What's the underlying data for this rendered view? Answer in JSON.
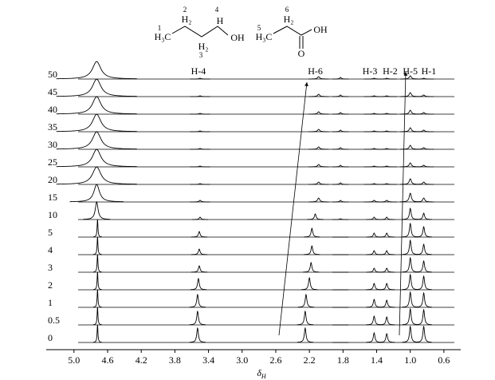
{
  "chart_data": {
    "type": "stacked-spectra",
    "x_label": "δ",
    "x_label_sub": "H",
    "xlim": [
      5.33,
      0.4
    ],
    "xticks": [
      {
        "value": 5.0,
        "label": "5.0"
      },
      4.6,
      4.2,
      3.8,
      3.4,
      {
        "value": 3.0,
        "label": "3.0"
      },
      2.6,
      2.2,
      1.8,
      1.4,
      {
        "value": 1.0,
        "label": "1.0"
      },
      0.6
    ],
    "peak_labels": [
      {
        "label": "H-4",
        "x": 3.52
      },
      {
        "label": "H-6",
        "x": 2.13
      },
      {
        "label": "H-3",
        "x": 1.48
      },
      {
        "label": "H-2",
        "x": 1.24
      },
      {
        "label": "H-5",
        "x": 1.0
      },
      {
        "label": "H-1",
        "x": 0.78
      }
    ],
    "series": [
      {
        "name": "0",
        "color": "#000000",
        "x": [
          4.72,
          3.53,
          2.25,
          1.83,
          1.43,
          1.28,
          1.0,
          0.84
        ],
        "values": [
          22,
          18,
          18,
          0,
          12,
          11,
          20,
          20
        ],
        "widths": [
          0.006,
          0.012,
          0.012,
          0.012,
          0.012,
          0.012,
          0.012,
          0.012
        ]
      },
      {
        "name": "0.5",
        "color": "#000000",
        "x": [
          4.72,
          3.53,
          2.25,
          1.83,
          1.43,
          1.28,
          1.0,
          0.84
        ],
        "values": [
          22,
          17,
          17,
          0,
          11,
          10,
          20,
          19
        ],
        "widths": [
          0.006,
          0.012,
          0.012,
          0.012,
          0.012,
          0.012,
          0.012,
          0.012
        ]
      },
      {
        "name": "1",
        "color": "#000000",
        "x": [
          4.72,
          3.53,
          2.24,
          1.83,
          1.43,
          1.28,
          1.0,
          0.84
        ],
        "values": [
          22,
          16,
          16,
          0,
          10,
          9,
          19,
          18
        ],
        "widths": [
          0.006,
          0.012,
          0.012,
          0.012,
          0.012,
          0.012,
          0.012,
          0.012
        ]
      },
      {
        "name": "2",
        "color": "#000000",
        "x": [
          4.72,
          3.52,
          2.2,
          1.83,
          1.43,
          1.28,
          1.0,
          0.84
        ],
        "values": [
          22,
          14,
          15,
          0,
          8,
          8,
          19,
          17
        ],
        "widths": [
          0.006,
          0.012,
          0.012,
          0.012,
          0.012,
          0.012,
          0.012,
          0.012
        ]
      },
      {
        "name": "3",
        "color": "#000000",
        "x": [
          4.72,
          3.51,
          2.18,
          1.83,
          1.43,
          1.28,
          1.0,
          0.84
        ],
        "values": [
          22,
          8,
          12,
          0,
          5,
          5,
          18,
          14
        ],
        "widths": [
          0.006,
          0.012,
          0.012,
          0.012,
          0.012,
          0.012,
          0.012,
          0.012
        ]
      },
      {
        "name": "4",
        "color": "#000000",
        "x": [
          4.72,
          3.51,
          2.17,
          1.83,
          1.43,
          1.28,
          1.0,
          0.84
        ],
        "values": [
          22,
          7,
          11,
          0,
          5,
          5,
          18,
          13
        ],
        "widths": [
          0.006,
          0.012,
          0.012,
          0.012,
          0.012,
          0.012,
          0.012,
          0.012
        ]
      },
      {
        "name": "5",
        "color": "#000000",
        "x": [
          4.72,
          3.51,
          2.17,
          1.83,
          1.43,
          1.28,
          1.0,
          0.84
        ],
        "values": [
          22,
          7,
          11,
          0,
          5,
          5,
          17,
          13
        ],
        "widths": [
          0.006,
          0.012,
          0.012,
          0.012,
          0.012,
          0.012,
          0.012,
          0.012
        ]
      },
      {
        "name": "10",
        "color": "#000000",
        "x": [
          4.73,
          3.5,
          2.13,
          1.83,
          1.43,
          1.28,
          1.0,
          0.84
        ],
        "values": [
          22,
          3,
          7,
          1,
          3,
          3,
          14,
          8
        ],
        "widths": [
          0.02,
          0.012,
          0.012,
          0.012,
          0.012,
          0.012,
          0.012,
          0.012
        ]
      },
      {
        "name": "15",
        "color": "#000000",
        "x": [
          4.73,
          3.5,
          2.09,
          1.83,
          1.43,
          1.28,
          1.0,
          0.84
        ],
        "values": [
          22,
          2,
          5,
          2,
          2,
          2,
          11,
          5
        ],
        "widths": [
          0.04,
          0.015,
          0.015,
          0.012,
          0.015,
          0.015,
          0.015,
          0.015
        ]
      },
      {
        "name": "20",
        "color": "#000000",
        "x": [
          4.73,
          3.5,
          2.09,
          1.83,
          1.43,
          1.28,
          1.0,
          0.84
        ],
        "values": [
          22,
          1,
          3,
          2,
          1,
          1,
          7,
          3
        ],
        "widths": [
          0.06,
          0.015,
          0.015,
          0.012,
          0.015,
          0.015,
          0.015,
          0.015
        ]
      },
      {
        "name": "25",
        "color": "#000000",
        "x": [
          4.73,
          3.5,
          2.09,
          1.83,
          1.43,
          1.28,
          1.0,
          0.84
        ],
        "values": [
          22,
          1,
          3,
          2,
          1,
          1,
          5,
          2
        ],
        "widths": [
          0.06,
          0.015,
          0.015,
          0.012,
          0.015,
          0.015,
          0.015,
          0.015
        ]
      },
      {
        "name": "30",
        "color": "#000000",
        "x": [
          4.73,
          3.5,
          2.09,
          1.83,
          1.43,
          1.28,
          1.0,
          0.84
        ],
        "values": [
          22,
          1,
          3,
          2,
          1,
          1,
          5,
          2
        ],
        "widths": [
          0.06,
          0.015,
          0.015,
          0.012,
          0.015,
          0.015,
          0.015,
          0.015
        ]
      },
      {
        "name": "35",
        "color": "#000000",
        "x": [
          4.73,
          3.5,
          2.09,
          1.83,
          1.43,
          1.28,
          1.0,
          0.84
        ],
        "values": [
          22,
          1,
          3,
          2,
          1,
          1,
          5,
          2
        ],
        "widths": [
          0.06,
          0.015,
          0.015,
          0.012,
          0.015,
          0.015,
          0.015,
          0.015
        ]
      },
      {
        "name": "40",
        "color": "#000000",
        "x": [
          4.73,
          3.5,
          2.09,
          1.83,
          1.43,
          1.28,
          1.0,
          0.84
        ],
        "values": [
          22,
          1,
          3,
          2,
          1,
          1,
          5,
          2
        ],
        "widths": [
          0.06,
          0.015,
          0.015,
          0.012,
          0.015,
          0.015,
          0.015,
          0.015
        ]
      },
      {
        "name": "45",
        "color": "#000000",
        "x": [
          4.73,
          3.5,
          2.09,
          1.83,
          1.43,
          1.28,
          1.0,
          0.84
        ],
        "values": [
          22,
          1,
          3,
          2,
          1,
          1,
          5,
          2
        ],
        "widths": [
          0.06,
          0.015,
          0.015,
          0.012,
          0.015,
          0.015,
          0.015,
          0.015
        ]
      },
      {
        "name": "50",
        "color": "#000000",
        "x": [
          4.73,
          3.5,
          2.09,
          1.83,
          1.43,
          1.28,
          1.0,
          0.84
        ],
        "values": [
          22,
          1,
          3,
          2,
          1,
          1,
          4,
          1
        ],
        "widths": [
          0.06,
          0.015,
          0.015,
          0.012,
          0.015,
          0.015,
          0.015,
          0.015
        ]
      }
    ]
  },
  "structures": {
    "butanol": {
      "c1": "1",
      "ch3": "H₃C",
      "c2": "2",
      "h2a": "H₂",
      "h2b": "H₂",
      "c3": "3",
      "c4": "4",
      "h4": "H",
      "oh": "OH"
    },
    "propanoic_acid": {
      "c5": "5",
      "ch3": "H₃C",
      "c6": "6",
      "h6": "H₂",
      "oh": "OH",
      "o": "O"
    }
  }
}
